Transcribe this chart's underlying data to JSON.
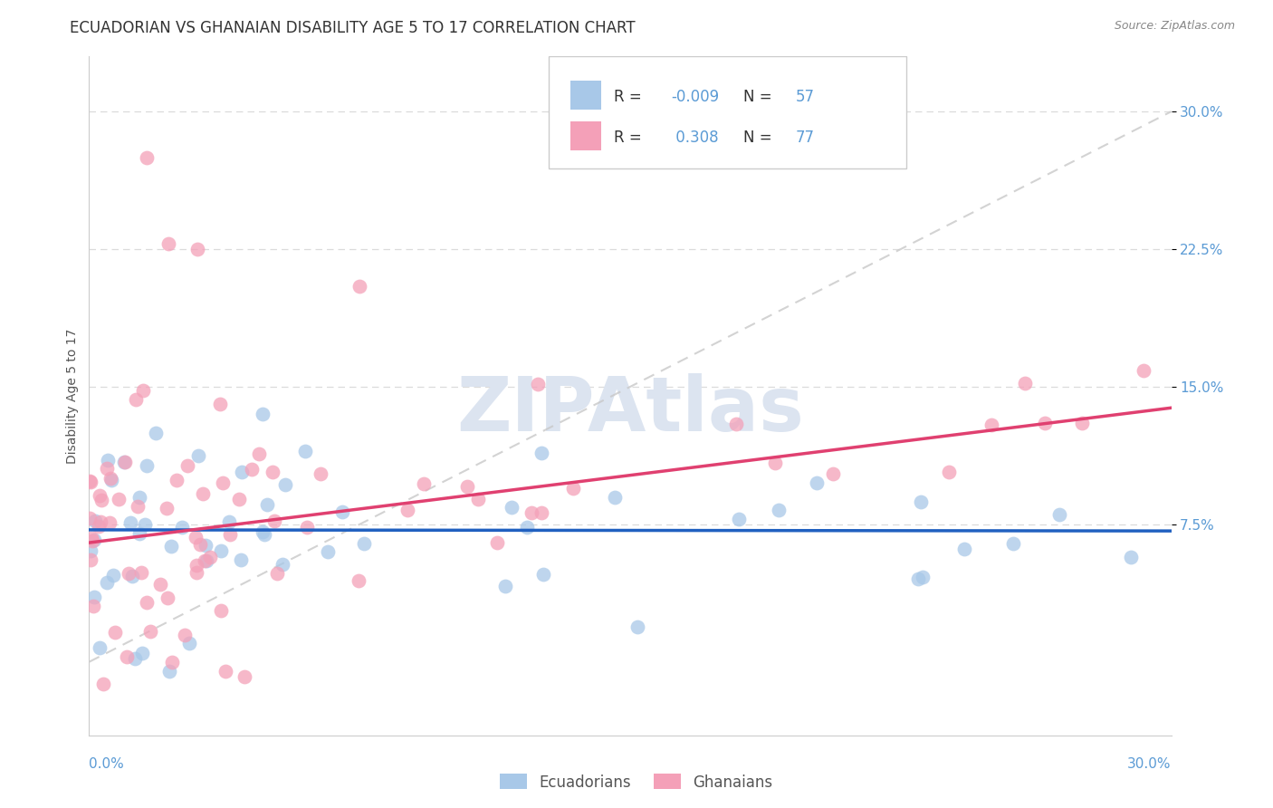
{
  "title": "ECUADORIAN VS GHANAIAN DISABILITY AGE 5 TO 17 CORRELATION CHART",
  "source_text": "Source: ZipAtlas.com",
  "ylabel": "Disability Age 5 to 17",
  "xlim": [
    0.0,
    0.3
  ],
  "ylim": [
    -0.04,
    0.33
  ],
  "ytick_vals": [
    0.075,
    0.15,
    0.225,
    0.3
  ],
  "ytick_labels": [
    "7.5%",
    "15.0%",
    "22.5%",
    "30.0%"
  ],
  "color_blue": "#a8c8e8",
  "color_pink": "#f4a0b8",
  "color_blue_line": "#2060c0",
  "color_pink_line": "#e04070",
  "color_diag_line": "#c8c8c8",
  "background_color": "#ffffff",
  "grid_color": "#d8d8d8",
  "watermark_text": "ZIPAtlas",
  "watermark_color": "#dce4f0",
  "title_fontsize": 12,
  "label_fontsize": 10,
  "tick_fontsize": 11,
  "source_fontsize": 9,
  "tick_color": "#5b9bd5",
  "title_color": "#333333",
  "legend_text_color": "#5b9bd5",
  "ecu_r": "-0.009",
  "ecu_n": "57",
  "gha_r": "0.308",
  "gha_n": "77"
}
